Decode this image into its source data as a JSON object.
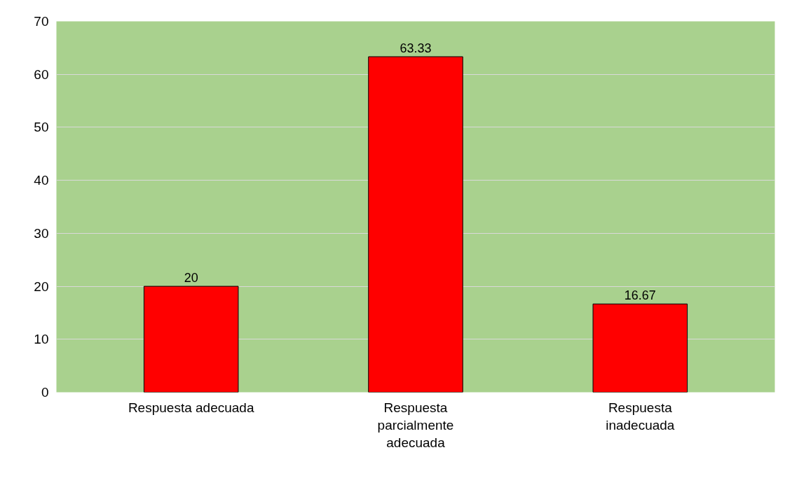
{
  "chart_data": {
    "type": "bar",
    "categories": [
      "Respuesta adecuada",
      "Respuesta parcialmente adecuada",
      "Respuesta inadecuada"
    ],
    "values": [
      20,
      63.33,
      16.67
    ],
    "color": "#ff0000",
    "ylim": [
      0,
      70
    ],
    "yticks": [
      0,
      10,
      20,
      30,
      40,
      50,
      60,
      70
    ],
    "grid": "y",
    "data_labels": true
  }
}
